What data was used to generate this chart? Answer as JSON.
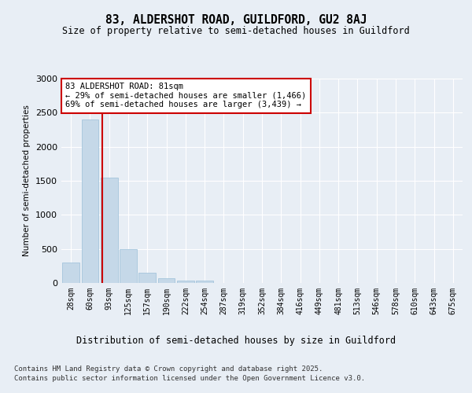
{
  "title_line1": "83, ALDERSHOT ROAD, GUILDFORD, GU2 8AJ",
  "title_line2": "Size of property relative to semi-detached houses in Guildford",
  "xlabel": "Distribution of semi-detached houses by size in Guildford",
  "ylabel": "Number of semi-detached properties",
  "categories": [
    "28sqm",
    "60sqm",
    "93sqm",
    "125sqm",
    "157sqm",
    "190sqm",
    "222sqm",
    "254sqm",
    "287sqm",
    "319sqm",
    "352sqm",
    "384sqm",
    "416sqm",
    "449sqm",
    "481sqm",
    "513sqm",
    "546sqm",
    "578sqm",
    "610sqm",
    "643sqm",
    "675sqm"
  ],
  "values": [
    300,
    2400,
    1550,
    500,
    150,
    70,
    30,
    30,
    0,
    0,
    0,
    0,
    0,
    0,
    0,
    0,
    0,
    0,
    0,
    0,
    0
  ],
  "bar_color": "#c5d8e8",
  "bar_edge_color": "#9abfd8",
  "vline_color": "#cc0000",
  "annotation_title": "83 ALDERSHOT ROAD: 81sqm",
  "annotation_line2": "← 29% of semi-detached houses are smaller (1,466)",
  "annotation_line3": "69% of semi-detached houses are larger (3,439) →",
  "box_color": "#cc0000",
  "ylim": [
    0,
    3000
  ],
  "yticks": [
    0,
    500,
    1000,
    1500,
    2000,
    2500,
    3000
  ],
  "footer_line1": "Contains HM Land Registry data © Crown copyright and database right 2025.",
  "footer_line2": "Contains public sector information licensed under the Open Government Licence v3.0.",
  "bg_color": "#e8eef5",
  "plot_bg_color": "#e8eef5"
}
